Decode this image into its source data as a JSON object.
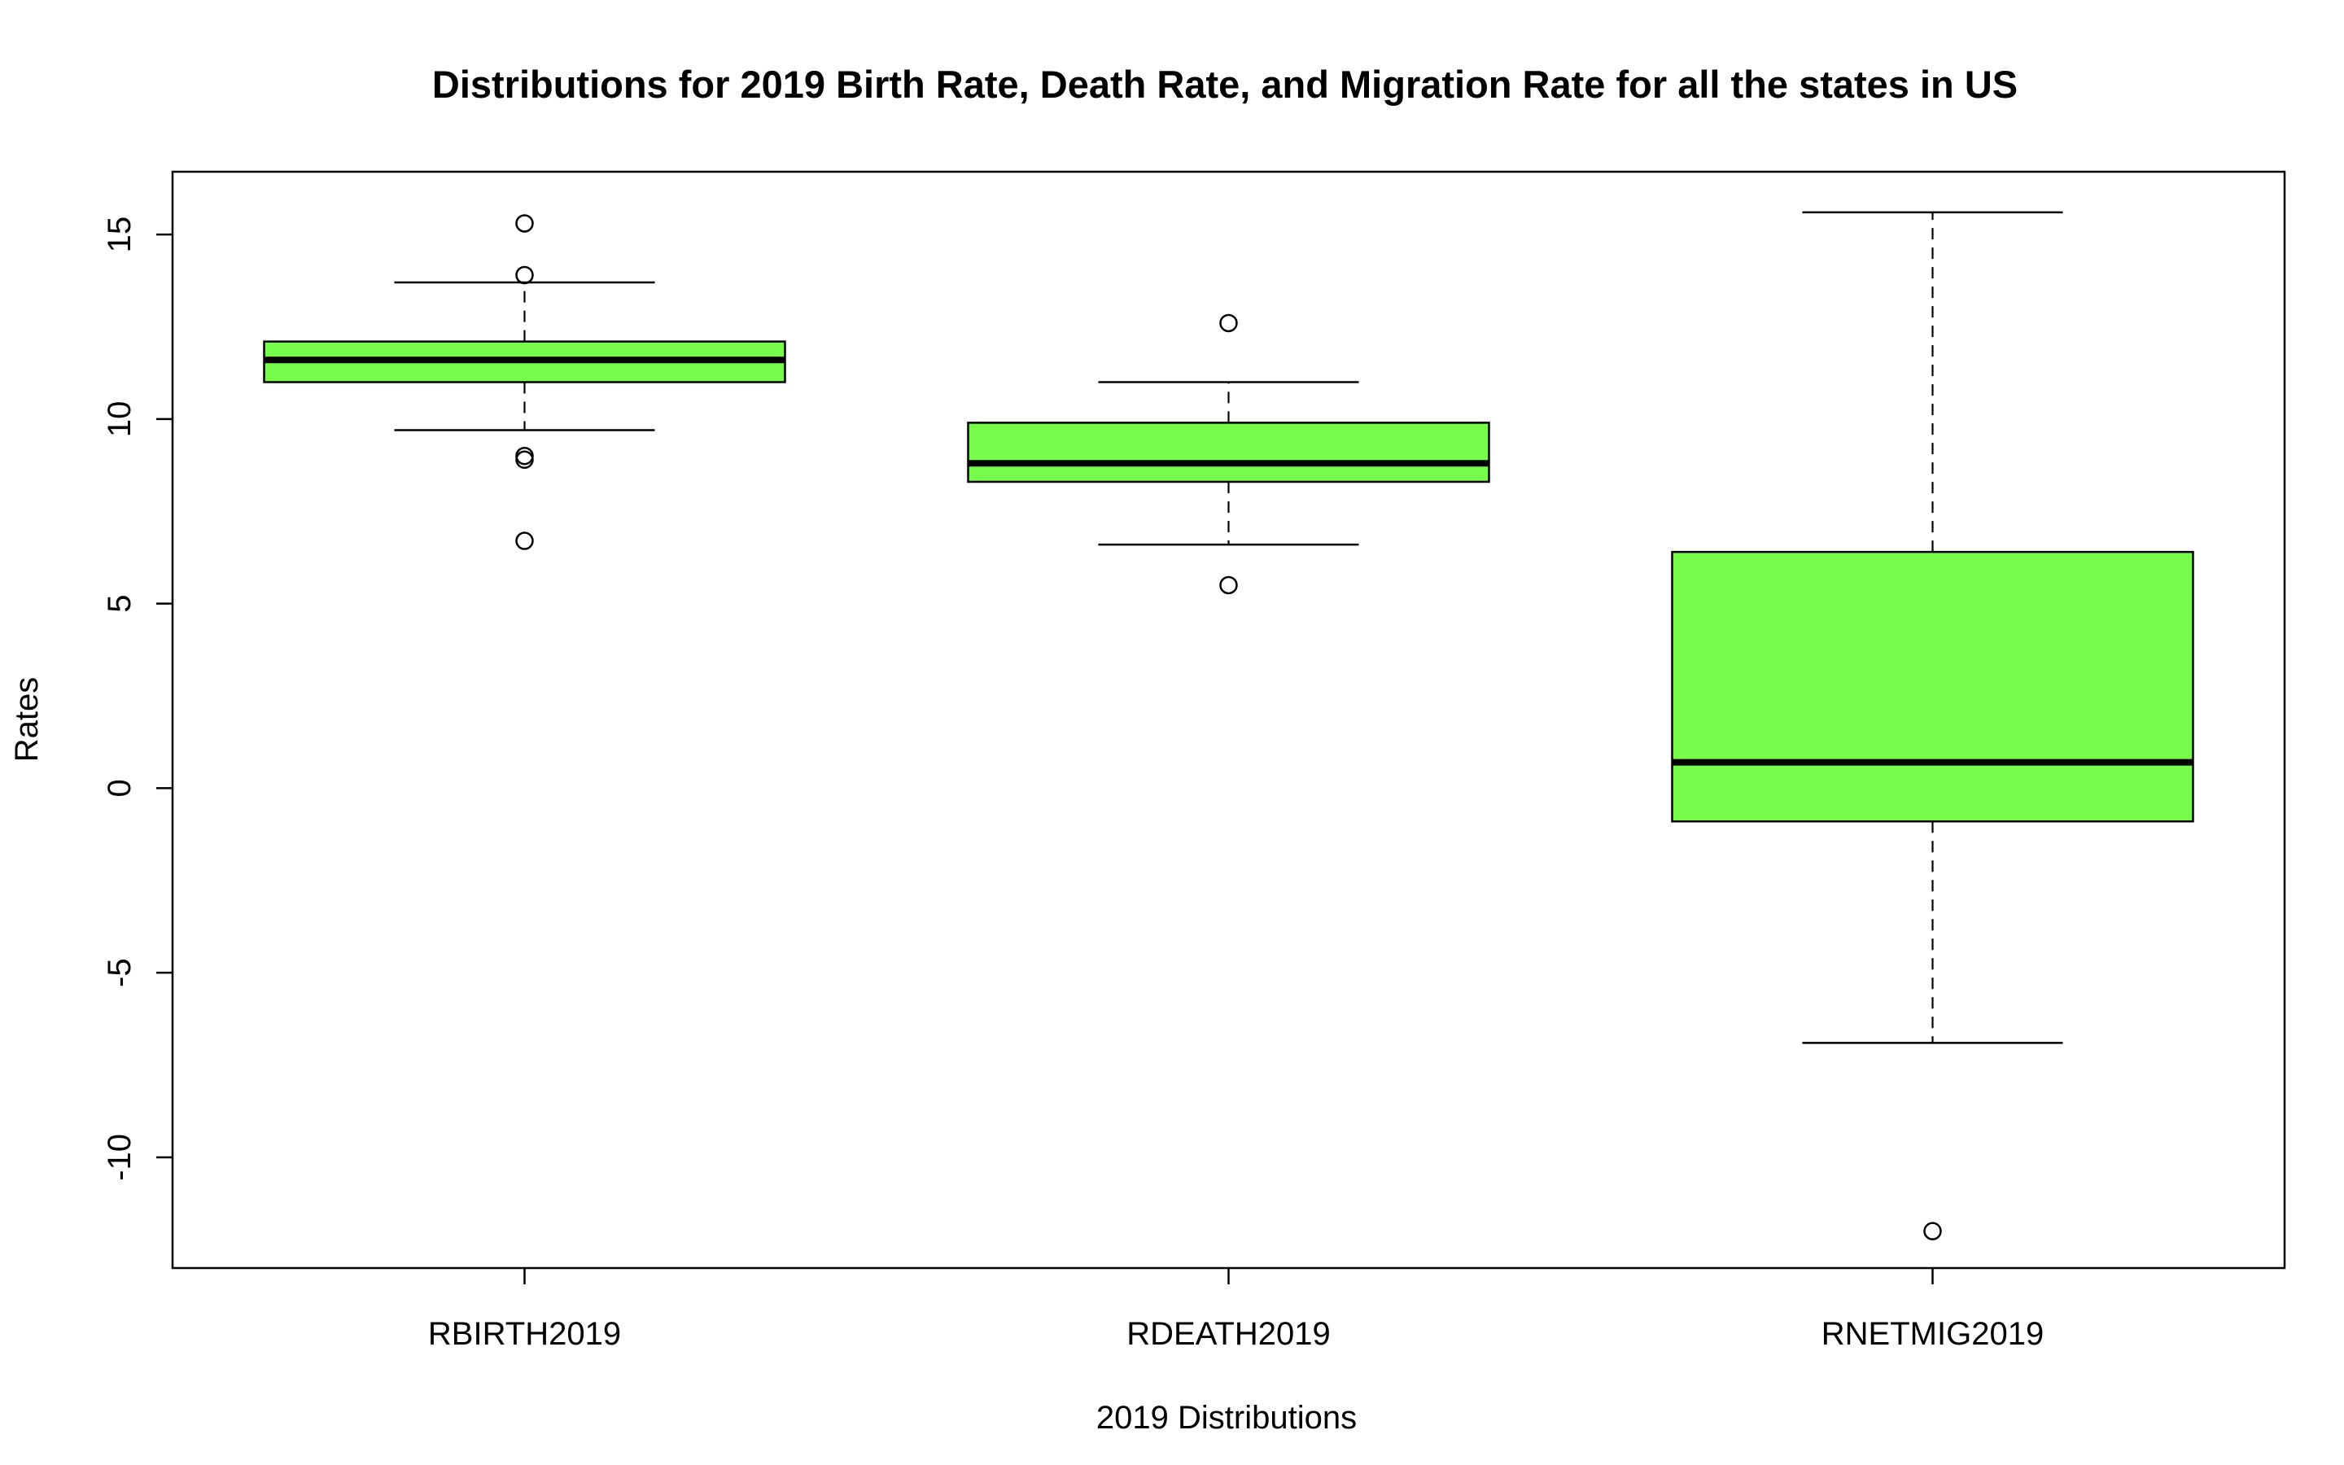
{
  "chart_data": {
    "type": "boxplot",
    "title": "Distributions for 2019 Birth Rate, Death Rate, and Migration Rate for all the states in US",
    "xlabel": "2019 Distributions",
    "ylabel": "Rates",
    "ylim": [
      -13,
      16.7
    ],
    "yticks": [
      -10,
      -5,
      0,
      5,
      10,
      15
    ],
    "ytick_labels": [
      "-10",
      "-5",
      "0",
      "5",
      "10",
      "15"
    ],
    "grid": false,
    "legend": "none",
    "box_fill": "#77FC4B",
    "stroke": "#000000",
    "categories": [
      "RBIRTH2019",
      "RDEATH2019",
      "RNETMIG2019"
    ],
    "boxes": [
      {
        "name": "RBIRTH2019",
        "whisker_low": 9.7,
        "q1": 11.0,
        "median": 11.6,
        "q3": 12.1,
        "whisker_high": 13.7,
        "outliers": [
          15.3,
          13.9,
          9.0,
          8.9,
          6.7
        ]
      },
      {
        "name": "RDEATH2019",
        "whisker_low": 6.6,
        "q1": 8.3,
        "median": 8.8,
        "q3": 9.9,
        "whisker_high": 11.0,
        "outliers": [
          12.6,
          5.5
        ]
      },
      {
        "name": "RNETMIG2019",
        "whisker_low": -6.9,
        "q1": -0.9,
        "median": 0.7,
        "q3": 6.4,
        "whisker_high": 15.6,
        "outliers": [
          -12.0
        ]
      }
    ]
  }
}
